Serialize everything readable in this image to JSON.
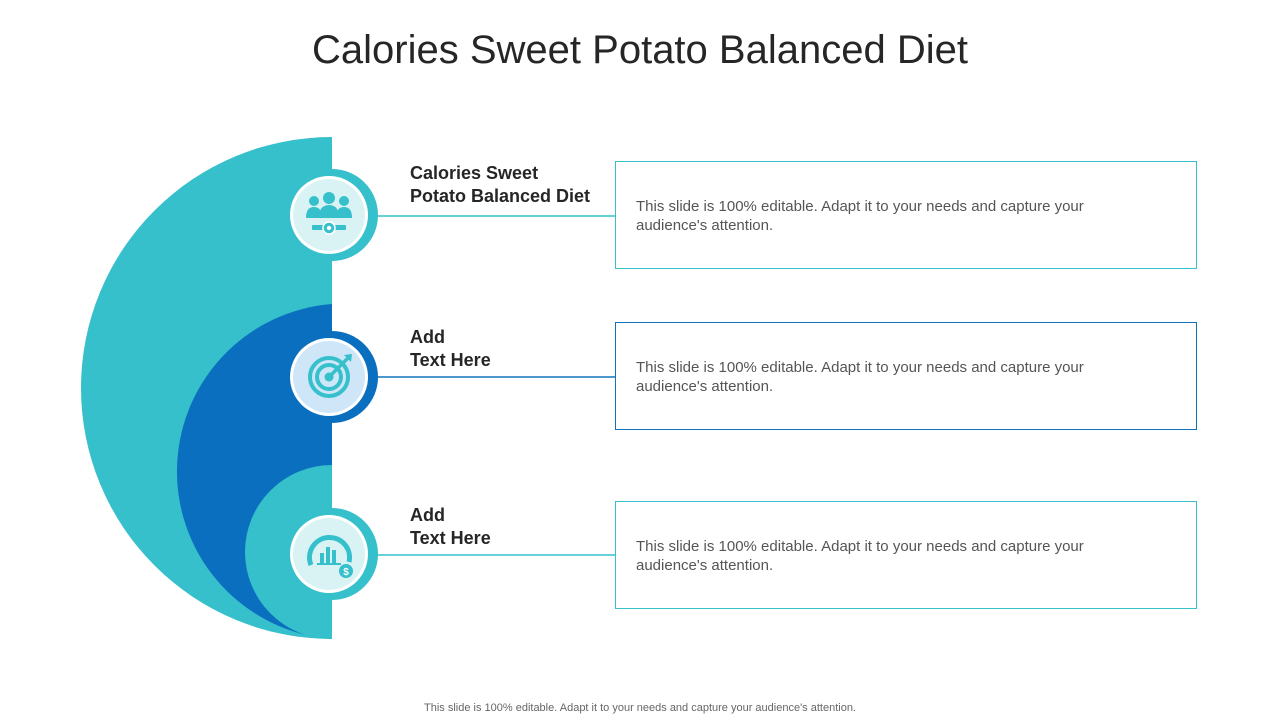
{
  "slide": {
    "title": "Calories Sweet Potato Balanced Diet",
    "footer": "This slide is 100% editable. Adapt it to your needs and capture your audience's attention."
  },
  "colors": {
    "teal": "#35c0cb",
    "blue": "#0b6fbf",
    "light_teal_fill": "#d9f3f5",
    "light_blue_fill": "#cfe6f8"
  },
  "items": [
    {
      "label": "Calories Sweet\nPotato Balanced Diet",
      "description": "This slide is 100% editable. Adapt it to your needs and capture your audience's attention.",
      "icon": "team-award-icon"
    },
    {
      "label": "Add\nText Here",
      "description": "This slide is 100% editable. Adapt it to your needs and capture your audience's attention.",
      "icon": "target-icon"
    },
    {
      "label": "Add\nText Here",
      "description": "This slide is 100% editable. Adapt it to your needs and capture your audience's attention.",
      "icon": "dollar-chart-icon"
    }
  ]
}
